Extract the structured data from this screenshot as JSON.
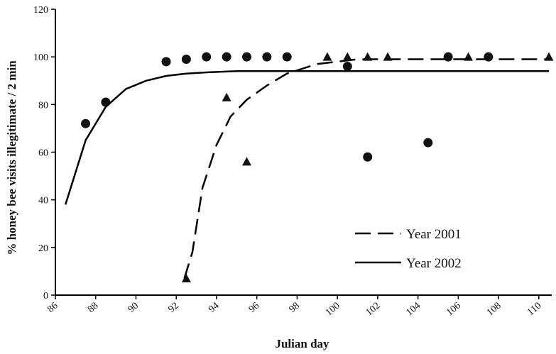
{
  "chart_data": {
    "type": "scatter",
    "title": "",
    "xlabel": "Julian day",
    "ylabel": "% honey bee visits illegitimate / 2 min",
    "xlim": [
      86,
      110.5
    ],
    "ylim": [
      0,
      120
    ],
    "x_ticks": [
      86,
      88,
      90,
      92,
      94,
      96,
      98,
      100,
      102,
      104,
      106,
      108,
      110
    ],
    "y_ticks": [
      0,
      20,
      40,
      60,
      80,
      100,
      120
    ],
    "grid": false,
    "legend_position": "bottom-right",
    "series": [
      {
        "name": "Year 2001",
        "marker": "triangle",
        "line_style": "dashed",
        "points": [
          {
            "x": 92.5,
            "y": 7
          },
          {
            "x": 94.5,
            "y": 83
          },
          {
            "x": 95.5,
            "y": 56
          },
          {
            "x": 99.5,
            "y": 100
          },
          {
            "x": 100.5,
            "y": 100
          },
          {
            "x": 101.5,
            "y": 100
          },
          {
            "x": 102.5,
            "y": 100
          },
          {
            "x": 106.5,
            "y": 100
          },
          {
            "x": 110.5,
            "y": 100
          }
        ],
        "fit": [
          {
            "x": 92.4,
            "y": 7
          },
          {
            "x": 92.8,
            "y": 18
          },
          {
            "x": 93.3,
            "y": 45
          },
          {
            "x": 94,
            "y": 63
          },
          {
            "x": 94.7,
            "y": 75
          },
          {
            "x": 95.5,
            "y": 82
          },
          {
            "x": 96.5,
            "y": 88
          },
          {
            "x": 97.5,
            "y": 93
          },
          {
            "x": 99,
            "y": 97
          },
          {
            "x": 101,
            "y": 99
          },
          {
            "x": 104,
            "y": 99
          },
          {
            "x": 110.5,
            "y": 99
          }
        ]
      },
      {
        "name": "Year 2002",
        "marker": "circle",
        "line_style": "solid",
        "points": [
          {
            "x": 87.5,
            "y": 72
          },
          {
            "x": 88.5,
            "y": 81
          },
          {
            "x": 91.5,
            "y": 98
          },
          {
            "x": 92.5,
            "y": 99
          },
          {
            "x": 93.5,
            "y": 100
          },
          {
            "x": 94.5,
            "y": 100
          },
          {
            "x": 95.5,
            "y": 100
          },
          {
            "x": 96.5,
            "y": 100
          },
          {
            "x": 97.5,
            "y": 100
          },
          {
            "x": 100.5,
            "y": 96
          },
          {
            "x": 101.5,
            "y": 58
          },
          {
            "x": 104.5,
            "y": 64
          },
          {
            "x": 105.5,
            "y": 100
          },
          {
            "x": 107.5,
            "y": 100
          }
        ],
        "fit": [
          {
            "x": 86.5,
            "y": 38
          },
          {
            "x": 87.5,
            "y": 65
          },
          {
            "x": 88.5,
            "y": 79
          },
          {
            "x": 89.5,
            "y": 86.5
          },
          {
            "x": 90.5,
            "y": 90
          },
          {
            "x": 91.5,
            "y": 92
          },
          {
            "x": 92.5,
            "y": 93
          },
          {
            "x": 93.5,
            "y": 93.5
          },
          {
            "x": 95,
            "y": 94
          },
          {
            "x": 98,
            "y": 94
          },
          {
            "x": 110.5,
            "y": 94
          }
        ]
      }
    ]
  }
}
